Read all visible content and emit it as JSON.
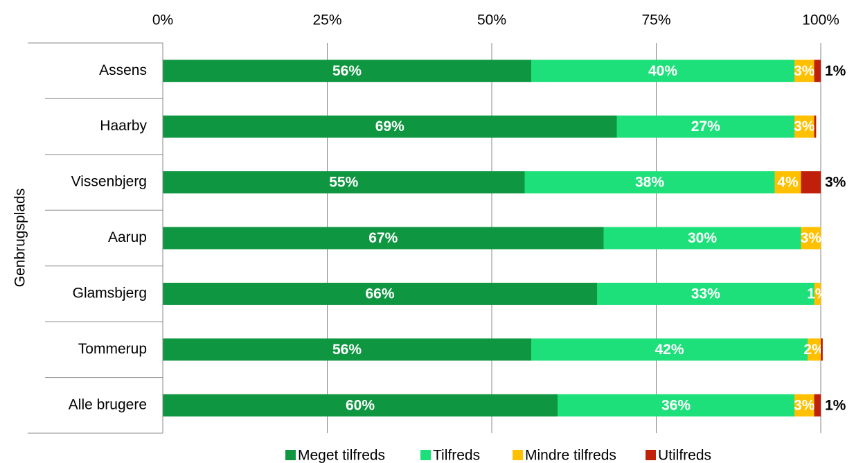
{
  "chart_data": {
    "type": "stacked-bar-horizontal",
    "y_axis_label": "Genbrugsplads",
    "categories": [
      "Assens",
      "Haarby",
      "Vissenbjerg",
      "Aarup",
      "Glamsbjerg",
      "Tommerup",
      "Alle brugere"
    ],
    "series": [
      {
        "name": "Meget tilfreds",
        "color": "#0f9640",
        "values": [
          56,
          69,
          55,
          67,
          66,
          56,
          60
        ],
        "value_labels": [
          "56%",
          "69%",
          "55%",
          "67%",
          "66%",
          "56%",
          "60%"
        ]
      },
      {
        "name": "Tilfreds",
        "color": "#1ee07b",
        "values": [
          40,
          27,
          38,
          30,
          33,
          42,
          36
        ],
        "value_labels": [
          "40%",
          "27%",
          "38%",
          "30%",
          "33%",
          "42%",
          "36%"
        ]
      },
      {
        "name": "Mindre tilfreds",
        "color": "#ffc000",
        "values": [
          3,
          3,
          4,
          3,
          1,
          2,
          3
        ],
        "value_labels": [
          "3%",
          "3%",
          "4%",
          "3%",
          "1%",
          "2%",
          "3%"
        ]
      },
      {
        "name": "Utilfreds",
        "color": "#c0200a",
        "values": [
          1,
          0.3,
          3,
          0,
          0,
          0.3,
          1
        ],
        "value_labels": [
          "1%",
          null,
          "3%",
          null,
          null,
          null,
          "1%"
        ]
      }
    ],
    "xlim": [
      0,
      100
    ],
    "xticks": [
      {
        "value": 0,
        "label": "0%"
      },
      {
        "value": 25,
        "label": "25%"
      },
      {
        "value": 50,
        "label": "50%"
      },
      {
        "value": 75,
        "label": "75%"
      },
      {
        "value": 100,
        "label": "100%"
      }
    ],
    "grid": true,
    "legend": "bottom"
  }
}
